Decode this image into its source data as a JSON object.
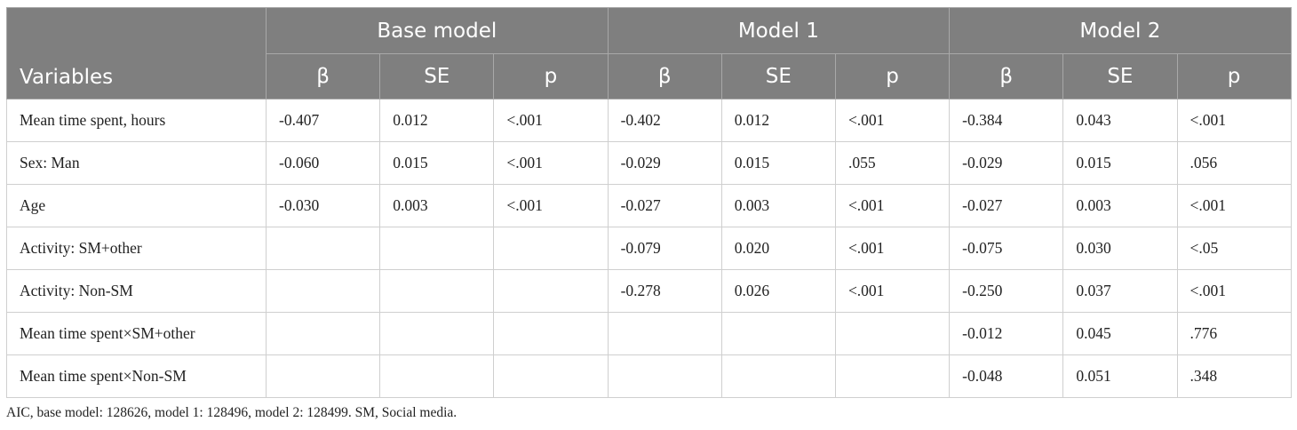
{
  "table": {
    "variables_header": "Variables",
    "model_headers": [
      "Base model",
      "Model 1",
      "Model 2"
    ],
    "stat_headers": [
      "β",
      "SE",
      "p"
    ],
    "rows": [
      {
        "label": "Mean time spent, hours",
        "cells": [
          "-0.407",
          "0.012",
          "<.001",
          "-0.402",
          "0.012",
          "<.001",
          "-0.384",
          "0.043",
          "<.001"
        ]
      },
      {
        "label": "Sex: Man",
        "cells": [
          "-0.060",
          "0.015",
          "<.001",
          "-0.029",
          "0.015",
          ".055",
          "-0.029",
          "0.015",
          ".056"
        ]
      },
      {
        "label": "Age",
        "cells": [
          "-0.030",
          "0.003",
          "<.001",
          "-0.027",
          "0.003",
          "<.001",
          "-0.027",
          "0.003",
          "<.001"
        ]
      },
      {
        "label": "Activity: SM+other",
        "cells": [
          "",
          "",
          "",
          "-0.079",
          "0.020",
          "<.001",
          "-0.075",
          "0.030",
          "<.05"
        ]
      },
      {
        "label": "Activity: Non-SM",
        "cells": [
          "",
          "",
          "",
          "-0.278",
          "0.026",
          "<.001",
          "-0.250",
          "0.037",
          "<.001"
        ]
      },
      {
        "label": "Mean time spent×SM+other",
        "cells": [
          "",
          "",
          "",
          "",
          "",
          "",
          "-0.012",
          "0.045",
          ".776"
        ]
      },
      {
        "label": "Mean time spent×Non-SM",
        "cells": [
          "",
          "",
          "",
          "",
          "",
          "",
          "-0.048",
          "0.051",
          ".348"
        ]
      }
    ]
  },
  "footnote": "AIC, base model: 128626, model 1: 128496, model 2: 128499. SM, Social media."
}
